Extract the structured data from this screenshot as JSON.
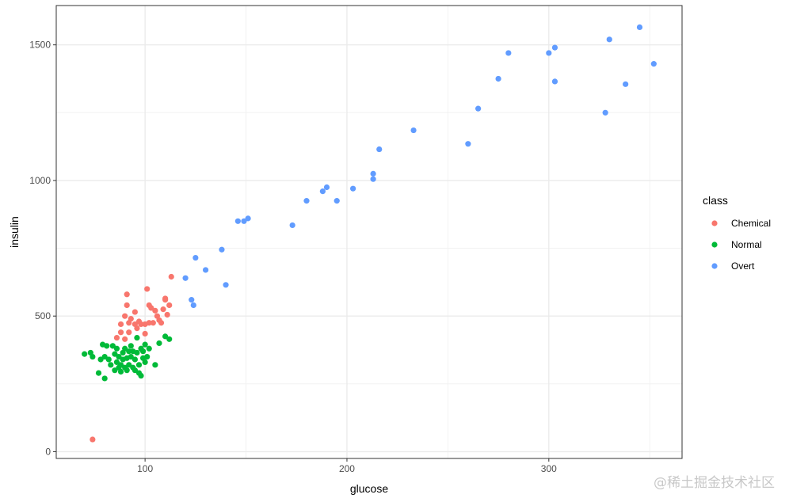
{
  "chart_data": {
    "type": "scatter",
    "xlabel": "glucose",
    "ylabel": "insulin",
    "xlim": [
      56,
      366
    ],
    "ylim": [
      -25,
      1645
    ],
    "x_ticks": [
      100,
      200,
      300
    ],
    "y_ticks": [
      0,
      500,
      1000,
      1500
    ],
    "grid": true,
    "legend": {
      "title": "class",
      "position": "right"
    },
    "colors": {
      "Chemical": "#F8766D",
      "Normal": "#00BA38",
      "Overt": "#619CFF"
    },
    "series": [
      {
        "name": "Chemical",
        "points": [
          [
            74,
            45
          ],
          [
            86,
            420
          ],
          [
            88,
            440
          ],
          [
            88,
            470
          ],
          [
            90,
            415
          ],
          [
            90,
            500
          ],
          [
            91,
            580
          ],
          [
            91,
            540
          ],
          [
            92,
            475
          ],
          [
            92,
            440
          ],
          [
            93,
            490
          ],
          [
            95,
            470
          ],
          [
            95,
            515
          ],
          [
            96,
            455
          ],
          [
            97,
            480
          ],
          [
            98,
            470
          ],
          [
            100,
            470
          ],
          [
            100,
            435
          ],
          [
            101,
            600
          ],
          [
            102,
            475
          ],
          [
            102,
            540
          ],
          [
            103,
            530
          ],
          [
            104,
            475
          ],
          [
            105,
            520
          ],
          [
            106,
            500
          ],
          [
            107,
            485
          ],
          [
            108,
            475
          ],
          [
            109,
            525
          ],
          [
            110,
            560
          ],
          [
            110,
            565
          ],
          [
            111,
            505
          ],
          [
            112,
            540
          ],
          [
            113,
            645
          ]
        ]
      },
      {
        "name": "Normal",
        "points": [
          [
            70,
            360
          ],
          [
            73,
            365
          ],
          [
            74,
            350
          ],
          [
            77,
            290
          ],
          [
            78,
            340
          ],
          [
            79,
            395
          ],
          [
            80,
            270
          ],
          [
            80,
            350
          ],
          [
            81,
            390
          ],
          [
            82,
            340
          ],
          [
            83,
            320
          ],
          [
            84,
            390
          ],
          [
            85,
            360
          ],
          [
            85,
            300
          ],
          [
            86,
            380
          ],
          [
            86,
            330
          ],
          [
            87,
            350
          ],
          [
            87,
            310
          ],
          [
            88,
            320
          ],
          [
            88,
            295
          ],
          [
            89,
            365
          ],
          [
            89,
            340
          ],
          [
            90,
            310
          ],
          [
            90,
            380
          ],
          [
            91,
            345
          ],
          [
            91,
            300
          ],
          [
            92,
            370
          ],
          [
            92,
            320
          ],
          [
            93,
            390
          ],
          [
            93,
            350
          ],
          [
            94,
            310
          ],
          [
            94,
            370
          ],
          [
            95,
            340
          ],
          [
            95,
            300
          ],
          [
            96,
            420
          ],
          [
            96,
            365
          ],
          [
            97,
            320
          ],
          [
            97,
            290
          ],
          [
            98,
            380
          ],
          [
            98,
            280
          ],
          [
            99,
            345
          ],
          [
            99,
            370
          ],
          [
            100,
            330
          ],
          [
            100,
            395
          ],
          [
            101,
            350
          ],
          [
            102,
            380
          ],
          [
            105,
            320
          ],
          [
            107,
            400
          ],
          [
            110,
            425
          ],
          [
            112,
            415
          ]
        ]
      },
      {
        "name": "Overt",
        "points": [
          [
            120,
            640
          ],
          [
            123,
            560
          ],
          [
            124,
            540
          ],
          [
            125,
            715
          ],
          [
            130,
            670
          ],
          [
            138,
            745
          ],
          [
            140,
            615
          ],
          [
            146,
            850
          ],
          [
            149,
            850
          ],
          [
            151,
            860
          ],
          [
            173,
            835
          ],
          [
            180,
            925
          ],
          [
            188,
            960
          ],
          [
            190,
            975
          ],
          [
            195,
            925
          ],
          [
            203,
            970
          ],
          [
            213,
            1005
          ],
          [
            213,
            1025
          ],
          [
            216,
            1115
          ],
          [
            233,
            1185
          ],
          [
            260,
            1135
          ],
          [
            265,
            1265
          ],
          [
            275,
            1375
          ],
          [
            280,
            1470
          ],
          [
            300,
            1470
          ],
          [
            303,
            1365
          ],
          [
            303,
            1490
          ],
          [
            328,
            1250
          ],
          [
            330,
            1520
          ],
          [
            338,
            1355
          ],
          [
            345,
            1565
          ],
          [
            352,
            1430
          ]
        ]
      }
    ]
  },
  "watermark": "@稀土掘金技术社区"
}
